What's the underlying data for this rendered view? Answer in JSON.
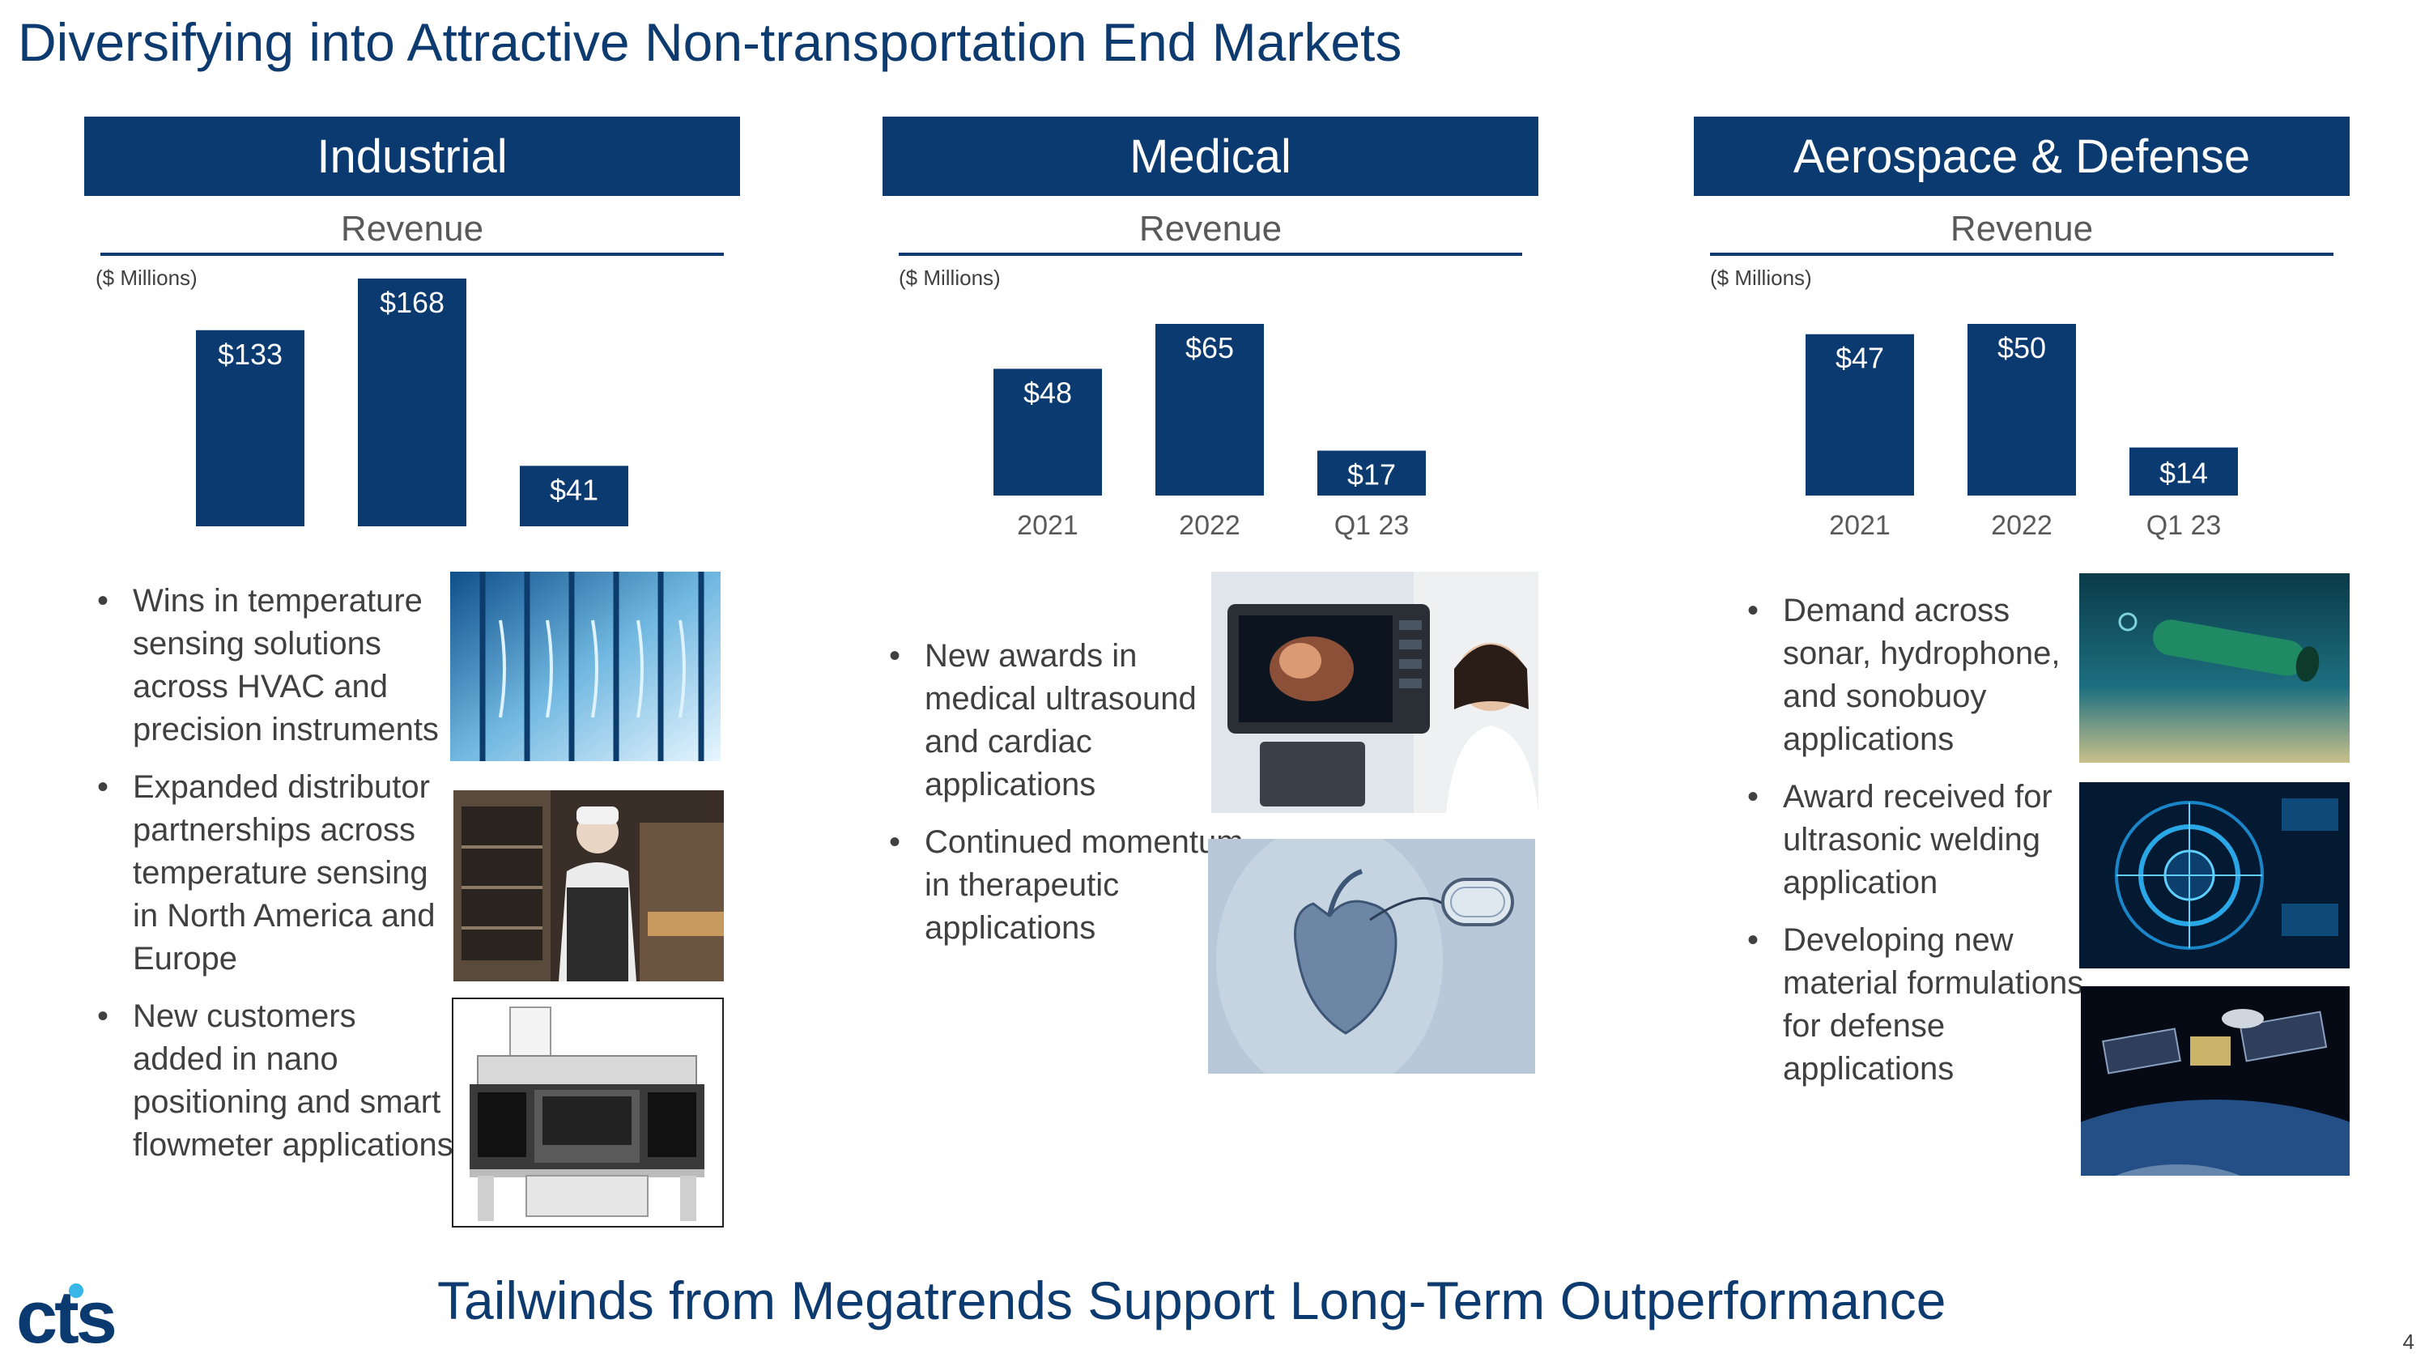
{
  "title": "Diversifying into Attractive Non-transportation End Markets",
  "footer": "Tailwinds from Megatrends Support Long-Term Outperformance",
  "page_number": "4",
  "logo_text": "cts",
  "colors": {
    "brand": "#0a3a70",
    "text": "#404040",
    "title": "#0d3b70"
  },
  "panels": [
    {
      "heading": "Industrial",
      "revenue_label": "Revenue",
      "unit_label": "($ Millions)",
      "bullets": [
        "Wins in temperature sensing solutions across HVAC and precision instruments",
        "Expanded distributor partnerships across temperature sensing in North America and Europe",
        "New customers added in nano positioning and smart flowmeter applications"
      ],
      "images": [
        "freezer-doors-photo",
        "bakery-worker-photo",
        "dispensing-machine-photo"
      ]
    },
    {
      "heading": "Medical",
      "revenue_label": "Revenue",
      "unit_label": "($ Millions)",
      "bullets": [
        "New awards in medical ultrasound and cardiac applications",
        "Continued momentum in therapeutic applications"
      ],
      "images": [
        "ultrasound-exam-photo",
        "heart-pacemaker-illustration"
      ]
    },
    {
      "heading": "Aerospace & Defense",
      "revenue_label": "Revenue",
      "unit_label": "($ Millions)",
      "bullets": [
        "Demand across sonar, hydrophone, and sonobuoy applications",
        "Award received for ultrasonic welding application",
        "Developing new material formulations for defense applications"
      ],
      "images": [
        "underwater-drone-photo",
        "sonar-display-photo",
        "satellite-photo"
      ]
    }
  ],
  "chart_data": [
    {
      "type": "bar",
      "title": "Industrial Revenue",
      "ylabel": "($ Millions)",
      "categories": [
        "",
        "",
        ""
      ],
      "values": [
        133,
        168,
        41
      ],
      "labels": [
        "$133",
        "$168",
        "$41"
      ],
      "ylim": [
        0,
        168
      ]
    },
    {
      "type": "bar",
      "title": "Medical Revenue",
      "ylabel": "($ Millions)",
      "categories": [
        "2021",
        "2022",
        "Q1 23"
      ],
      "values": [
        48,
        65,
        17
      ],
      "labels": [
        "$48",
        "$65",
        "$17"
      ],
      "ylim": [
        0,
        65
      ]
    },
    {
      "type": "bar",
      "title": "Aerospace & Defense Revenue",
      "ylabel": "($ Millions)",
      "categories": [
        "2021",
        "2022",
        "Q1 23"
      ],
      "values": [
        47,
        50,
        14
      ],
      "labels": [
        "$47",
        "$50",
        "$14"
      ],
      "ylim": [
        0,
        50
      ]
    }
  ]
}
